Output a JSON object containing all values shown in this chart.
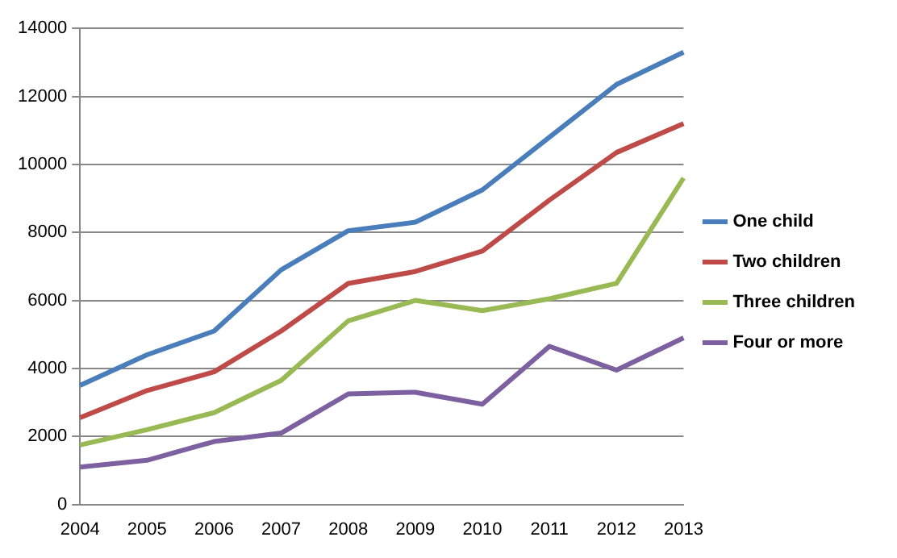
{
  "chart_data": {
    "type": "line",
    "categories": [
      "2004",
      "2005",
      "2006",
      "2007",
      "2008",
      "2009",
      "2010",
      "2011",
      "2012",
      "2013"
    ],
    "series": [
      {
        "name": "One child",
        "color": "#4a7ebb",
        "values": [
          3500,
          4400,
          5100,
          6900,
          8050,
          8300,
          9250,
          10800,
          12350,
          13300
        ]
      },
      {
        "name": "Two children",
        "color": "#be4b48",
        "values": [
          2550,
          3350,
          3900,
          5100,
          6500,
          6850,
          7450,
          8950,
          10350,
          11200
        ]
      },
      {
        "name": "Three children",
        "color": "#98b954",
        "values": [
          1750,
          2200,
          2700,
          3650,
          5400,
          6000,
          5700,
          6050,
          6500,
          9600
        ]
      },
      {
        "name": "Four or more",
        "color": "#7d60a0",
        "values": [
          1100,
          1300,
          1850,
          2100,
          3250,
          3300,
          2950,
          4650,
          3950,
          4900
        ]
      }
    ],
    "ylim": [
      0,
      14000
    ],
    "yticks": [
      0,
      2000,
      4000,
      6000,
      8000,
      10000,
      12000,
      14000
    ],
    "grid": "y",
    "legend": "right",
    "marker": "none"
  }
}
